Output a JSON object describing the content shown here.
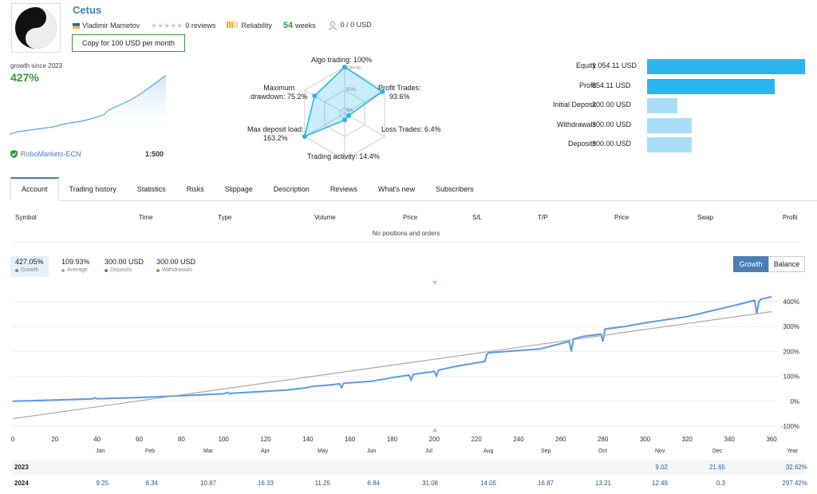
{
  "header": {
    "title": "Cetus",
    "author": "Vladimir Mametov",
    "reviews": "0 reviews",
    "reliability": "Reliability",
    "weeks_value": "54",
    "weeks_label": "weeks",
    "subscribers": "0 / 0 USD",
    "copy_button": "Copy for 100 USD per month",
    "reliability_level": 0.6
  },
  "growth": {
    "label": "growth since 2023",
    "value": "427%",
    "broker": "RoboMarkets-ECN",
    "leverage": "1:500"
  },
  "radar": {
    "labels": {
      "algo": "Algo trading: 100%",
      "profit_trades": "Profit Trades:\n93.6%",
      "loss_trades": "Loss Trades: 6.4%",
      "trading_activity": "Trading activity: 14.4%",
      "max_deposit_load": "Max deposit load:\n163.2%",
      "max_drawdown": "Maximum\ndrawdown: 75.2%"
    },
    "scale_100": "100+%",
    "scale_50": "50%",
    "scale_0": "0%",
    "values": [
      100,
      93.6,
      6.4,
      14.4,
      163.2,
      75.2
    ]
  },
  "stats": [
    {
      "name": "Equity",
      "value": "1 054.11 USD",
      "amount": 1054.11,
      "color": "#29b6f0"
    },
    {
      "name": "Profit",
      "value": "854.11 USD",
      "amount": 854.11,
      "color": "#29b6f0"
    },
    {
      "name": "Initial Deposit",
      "value": "200.00 USD",
      "amount": 200.0,
      "color": "#a8dff7"
    },
    {
      "name": "Withdrawals",
      "value": "300.00 USD",
      "amount": 300.0,
      "color": "#a8dff7"
    },
    {
      "name": "Deposits",
      "value": "300.00 USD",
      "amount": 300.0,
      "color": "#a8dff7"
    }
  ],
  "tabs": [
    "Account",
    "Trading history",
    "Statistics",
    "Risks",
    "Slippage",
    "Description",
    "Reviews",
    "What's new",
    "Subscribers"
  ],
  "positions": {
    "headers": [
      "Symbol",
      "Time",
      "Type",
      "Volume",
      "Price",
      "S/L",
      "T/P",
      "Price",
      "Swap",
      "Profit"
    ],
    "empty": "No positions and orders"
  },
  "legend": [
    {
      "value": "427.05%",
      "label": "Growth",
      "color": "#4a90e2"
    },
    {
      "value": "109.93%",
      "label": "Average",
      "color": "#aaaaaa"
    },
    {
      "value": "300.00 USD",
      "label": "Deposits",
      "color": "#3a9a3a"
    },
    {
      "value": "300.00 USD",
      "label": "Withdrawals",
      "color": "#e8743b"
    }
  ],
  "chart_buttons": {
    "growth": "Growth",
    "balance": "Balance"
  },
  "chart_data": {
    "type": "line",
    "x_ticks": [
      "0",
      "20",
      "40",
      "60",
      "80",
      "100",
      "120",
      "140",
      "160",
      "180",
      "200",
      "220",
      "240",
      "260",
      "280",
      "300",
      "320",
      "340",
      "360"
    ],
    "y_ticks": [
      "400%",
      "300%",
      "200%",
      "100%",
      "0%",
      "-100%"
    ],
    "xlim": [
      0,
      360
    ],
    "ylim": [
      -100,
      430
    ],
    "series": [
      {
        "name": "Growth",
        "color": "#5b9be6",
        "x": [
          0,
          20,
          38,
          39,
          40,
          60,
          80,
          100,
          102,
          103,
          104,
          130,
          140,
          142,
          150,
          155,
          156,
          157,
          170,
          180,
          188,
          189,
          190,
          200,
          201,
          202,
          210,
          224,
          225,
          226,
          250,
          264,
          265,
          266,
          270,
          279,
          280,
          281,
          290,
          300,
          320,
          340,
          352,
          353,
          354,
          355,
          360
        ],
        "y": [
          0,
          5,
          10,
          14,
          10,
          15,
          22,
          30,
          36,
          30,
          32,
          45,
          55,
          60,
          65,
          70,
          55,
          72,
          80,
          95,
          105,
          85,
          108,
          120,
          102,
          125,
          140,
          160,
          190,
          195,
          210,
          240,
          200,
          250,
          260,
          270,
          240,
          290,
          300,
          315,
          340,
          380,
          405,
          350,
          400,
          410,
          420
        ]
      },
      {
        "name": "Average",
        "color": "#aaaaaa",
        "x": [
          0,
          360
        ],
        "y": [
          -70,
          360
        ]
      }
    ]
  },
  "monthly": {
    "headers": [
      "Jan",
      "Feb",
      "Mar",
      "Apr",
      "May",
      "Jun",
      "Jul",
      "Aug",
      "Sep",
      "Oct",
      "Nov",
      "Dec",
      "Year"
    ],
    "rows": [
      {
        "year": "2023",
        "values": [
          "",
          "",
          "",
          "",
          "",
          "",
          "",
          "",
          "",
          "",
          "9.02",
          "21.65",
          "32.62%"
        ]
      },
      {
        "year": "2024",
        "values": [
          "9.25",
          "6.34",
          "10.87",
          "16.33",
          "11.25",
          "6.84",
          "31.08",
          "14.05",
          "16.87",
          "13.21",
          "12.49",
          "0.3",
          "297.42%"
        ]
      }
    ]
  }
}
